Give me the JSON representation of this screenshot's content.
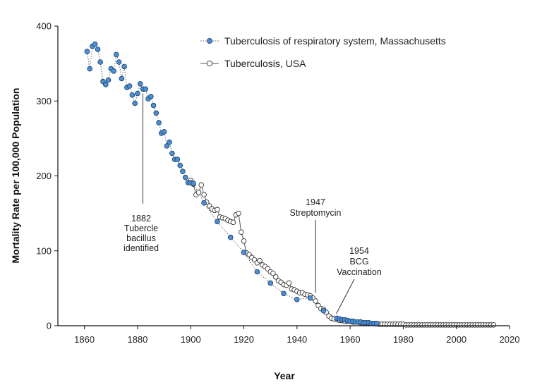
{
  "chart_data": {
    "type": "line",
    "title": "",
    "xlabel": "Year",
    "ylabel": "Mortality Rate per 100,000 Population",
    "xlim": [
      1850,
      2020
    ],
    "ylim": [
      0,
      400
    ],
    "x_ticks": [
      1860,
      1880,
      1900,
      1920,
      1940,
      1960,
      1980,
      2000,
      2020
    ],
    "y_ticks": [
      0,
      100,
      200,
      300,
      400
    ],
    "grid": false,
    "legend_position": "top-right",
    "colors": {
      "massachusetts": "#4a8fd4",
      "usa": "#ffffff",
      "line": "#555555"
    },
    "series": [
      {
        "name": "Tuberculosis of respiratory system, Massachusetts",
        "marker": "filled-circle",
        "line": "dotted",
        "x": [
          1861,
          1862,
          1863,
          1864,
          1865,
          1866,
          1867,
          1868,
          1869,
          1870,
          1871,
          1872,
          1873,
          1874,
          1875,
          1876,
          1877,
          1878,
          1879,
          1880,
          1881,
          1882,
          1883,
          1884,
          1885,
          1886,
          1887,
          1888,
          1889,
          1890,
          1891,
          1892,
          1893,
          1894,
          1895,
          1896,
          1897,
          1898,
          1899,
          1900,
          1901,
          1905,
          1910,
          1915,
          1920,
          1925,
          1930,
          1935,
          1940,
          1945,
          1950,
          1955,
          1956,
          1957,
          1958,
          1959,
          1960,
          1961,
          1962,
          1963,
          1964,
          1965,
          1966,
          1967,
          1968,
          1969,
          1970
        ],
        "y": [
          366,
          343,
          373,
          376,
          369,
          352,
          326,
          322,
          328,
          343,
          340,
          362,
          352,
          330,
          346,
          318,
          320,
          308,
          297,
          310,
          323,
          316,
          316,
          303,
          306,
          294,
          284,
          271,
          257,
          259,
          240,
          245,
          230,
          222,
          222,
          214,
          206,
          198,
          191,
          191,
          190,
          164,
          139,
          118,
          98,
          72,
          57,
          43,
          35,
          37,
          20,
          10,
          9,
          8,
          8,
          7,
          6,
          6,
          5,
          5,
          5,
          4,
          4,
          4,
          3,
          3,
          3
        ]
      },
      {
        "name": "Tuberculosis, USA",
        "marker": "open-circle",
        "line": "solid",
        "x": [
          1900,
          1901,
          1902,
          1903,
          1904,
          1905,
          1906,
          1907,
          1908,
          1909,
          1910,
          1911,
          1912,
          1913,
          1914,
          1915,
          1916,
          1917,
          1918,
          1919,
          1920,
          1921,
          1922,
          1923,
          1924,
          1925,
          1926,
          1927,
          1928,
          1929,
          1930,
          1931,
          1932,
          1933,
          1934,
          1935,
          1936,
          1937,
          1938,
          1939,
          1940,
          1941,
          1942,
          1943,
          1944,
          1945,
          1946,
          1947,
          1948,
          1949,
          1950,
          1951,
          1952,
          1953,
          1954,
          1955,
          1956,
          1957,
          1958,
          1959,
          1960,
          1961,
          1962,
          1963,
          1964,
          1965,
          1966,
          1967,
          1968,
          1969,
          1970,
          1971,
          1972,
          1973,
          1974,
          1975,
          1976,
          1977,
          1978,
          1979,
          1980,
          1981,
          1982,
          1983,
          1984,
          1985,
          1986,
          1987,
          1988,
          1989,
          1990,
          1991,
          1992,
          1993,
          1994,
          1995,
          1996,
          1997,
          1998,
          1999,
          2000,
          2001,
          2002,
          2003,
          2004,
          2005,
          2006,
          2007,
          2008,
          2009,
          2010,
          2011,
          2012,
          2013,
          2014
        ],
        "y": [
          194,
          189,
          175,
          178,
          188,
          175,
          165,
          160,
          156,
          154,
          155,
          145,
          144,
          143,
          141,
          139,
          138,
          148,
          150,
          125,
          113,
          97,
          95,
          91,
          88,
          84,
          87,
          81,
          79,
          76,
          72,
          70,
          65,
          60,
          58,
          55,
          54,
          57,
          49,
          48,
          46,
          44,
          44,
          42,
          41,
          40,
          37,
          33,
          27,
          23,
          22,
          18,
          13,
          10,
          9,
          8,
          7,
          7,
          6,
          6,
          6,
          5,
          5,
          5,
          4,
          4,
          4,
          4,
          3,
          3,
          3,
          2,
          2,
          2,
          2,
          2,
          2,
          2,
          2,
          2,
          2,
          1,
          1,
          1,
          1,
          1,
          1,
          1,
          1,
          1,
          1,
          1,
          1,
          1,
          1,
          1,
          1,
          1,
          1,
          1,
          1,
          1,
          1,
          1,
          1,
          1,
          1,
          1,
          1,
          1,
          1,
          1,
          1,
          1,
          1
        ]
      }
    ],
    "annotations": [
      {
        "lines": [
          "1882",
          "Tubercle",
          "bacillus",
          "identified"
        ],
        "x": 1882,
        "y_from": 310,
        "y_to": 163
      },
      {
        "lines": [
          "1947",
          "Streptomycin"
        ],
        "x": 1947,
        "y_from": 160,
        "y_to": 44
      },
      {
        "lines": [
          "1954",
          "BCG",
          "Vaccination"
        ],
        "x": 1954,
        "y_from": 65,
        "y_to": 16
      }
    ]
  }
}
